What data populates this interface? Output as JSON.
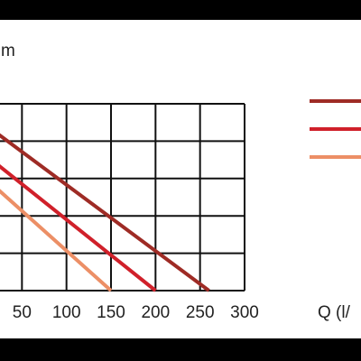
{
  "chart_data": {
    "type": "line",
    "ylabel": "m",
    "xlabel": "Q (l/",
    "x_ticks": [
      "50",
      "100",
      "150",
      "200",
      "250",
      "300"
    ],
    "xlim": [
      0,
      300
    ],
    "ylim": [
      0,
      5
    ],
    "grid": true,
    "legend_position": "right",
    "series": [
      {
        "color": "#9e2b25",
        "x": [
          0,
          260
        ],
        "y": [
          4.6,
          0
        ]
      },
      {
        "color": "#d0202a",
        "x": [
          0,
          200
        ],
        "y": [
          3.8,
          0
        ]
      },
      {
        "color": "#ec8f66",
        "x": [
          0,
          150
        ],
        "y": [
          3.2,
          0
        ]
      }
    ]
  }
}
